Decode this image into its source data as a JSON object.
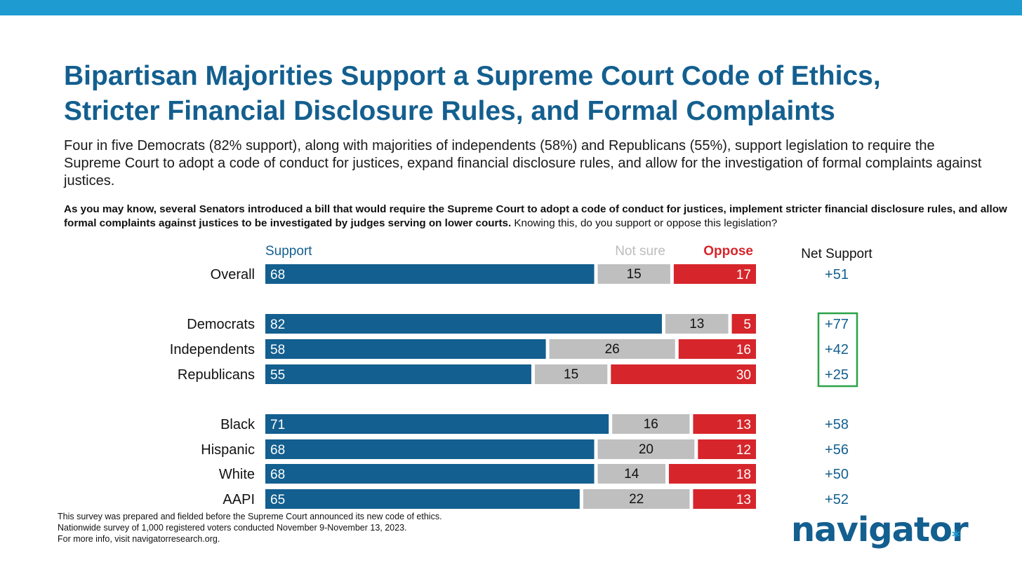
{
  "title_line1": "Bipartisan Majorities Support a Supreme Court Code of Ethics,",
  "title_line2": "Stricter Financial Disclosure Rules, and Formal Complaints",
  "subtitle": "Four in five Democrats (82% support), along with majorities of independents (58%) and Republicans (55%), support legislation to require the Supreme Court to adopt a code of conduct for justices, expand financial disclosure rules, and allow for the investigation of formal complaints against justices.",
  "question_bold": "As you may know, several Senators introduced a bill that would require the Supreme Court to adopt a code of conduct for justices, implement stricter financial disclosure rules, and allow formal complaints against justices to be investigated by judges serving on lower courts.",
  "question_plain": " Knowing this, do you support or oppose this legislation?",
  "footnotes": [
    "This survey was prepared and fielded before the Supreme Court announced its new code of ethics.",
    "Nationwide survey of 1,000 registered voters conducted November 9-November 13, 2023.",
    "For more info, visit navigatorresearch.org."
  ],
  "logo_text": "navigator",
  "logo_mark": "*",
  "colors": {
    "support": "#135f8f",
    "not_sure": "#bfbfbf",
    "oppose": "#d6262b",
    "not_sure_label": "#bcbcbc",
    "highlight_box": "#2aa347",
    "top_band": "#1e9bd0"
  },
  "chart_data": {
    "type": "bar",
    "orientation": "horizontal",
    "stacked": true,
    "legend": [
      "Support",
      "Not sure",
      "Oppose"
    ],
    "net_header": "Net Support",
    "categories": [
      "Overall",
      "Democrats",
      "Independents",
      "Republicans",
      "Black",
      "Hispanic",
      "White",
      "AAPI"
    ],
    "groups": [
      [
        "Overall"
      ],
      [
        "Democrats",
        "Independents",
        "Republicans"
      ],
      [
        "Black",
        "Hispanic",
        "White",
        "AAPI"
      ]
    ],
    "series": [
      {
        "name": "Support",
        "values": [
          68,
          82,
          58,
          55,
          71,
          68,
          68,
          65
        ]
      },
      {
        "name": "Not sure",
        "values": [
          15,
          13,
          26,
          15,
          16,
          20,
          14,
          22
        ]
      },
      {
        "name": "Oppose",
        "values": [
          17,
          5,
          16,
          30,
          13,
          12,
          18,
          13
        ]
      }
    ],
    "net_support": [
      "+51",
      "+77",
      "+42",
      "+25",
      "+58",
      "+56",
      "+50",
      "+52"
    ],
    "highlighted_net": [
      "Democrats",
      "Independents",
      "Republicans"
    ],
    "xlim": [
      0,
      100
    ]
  }
}
